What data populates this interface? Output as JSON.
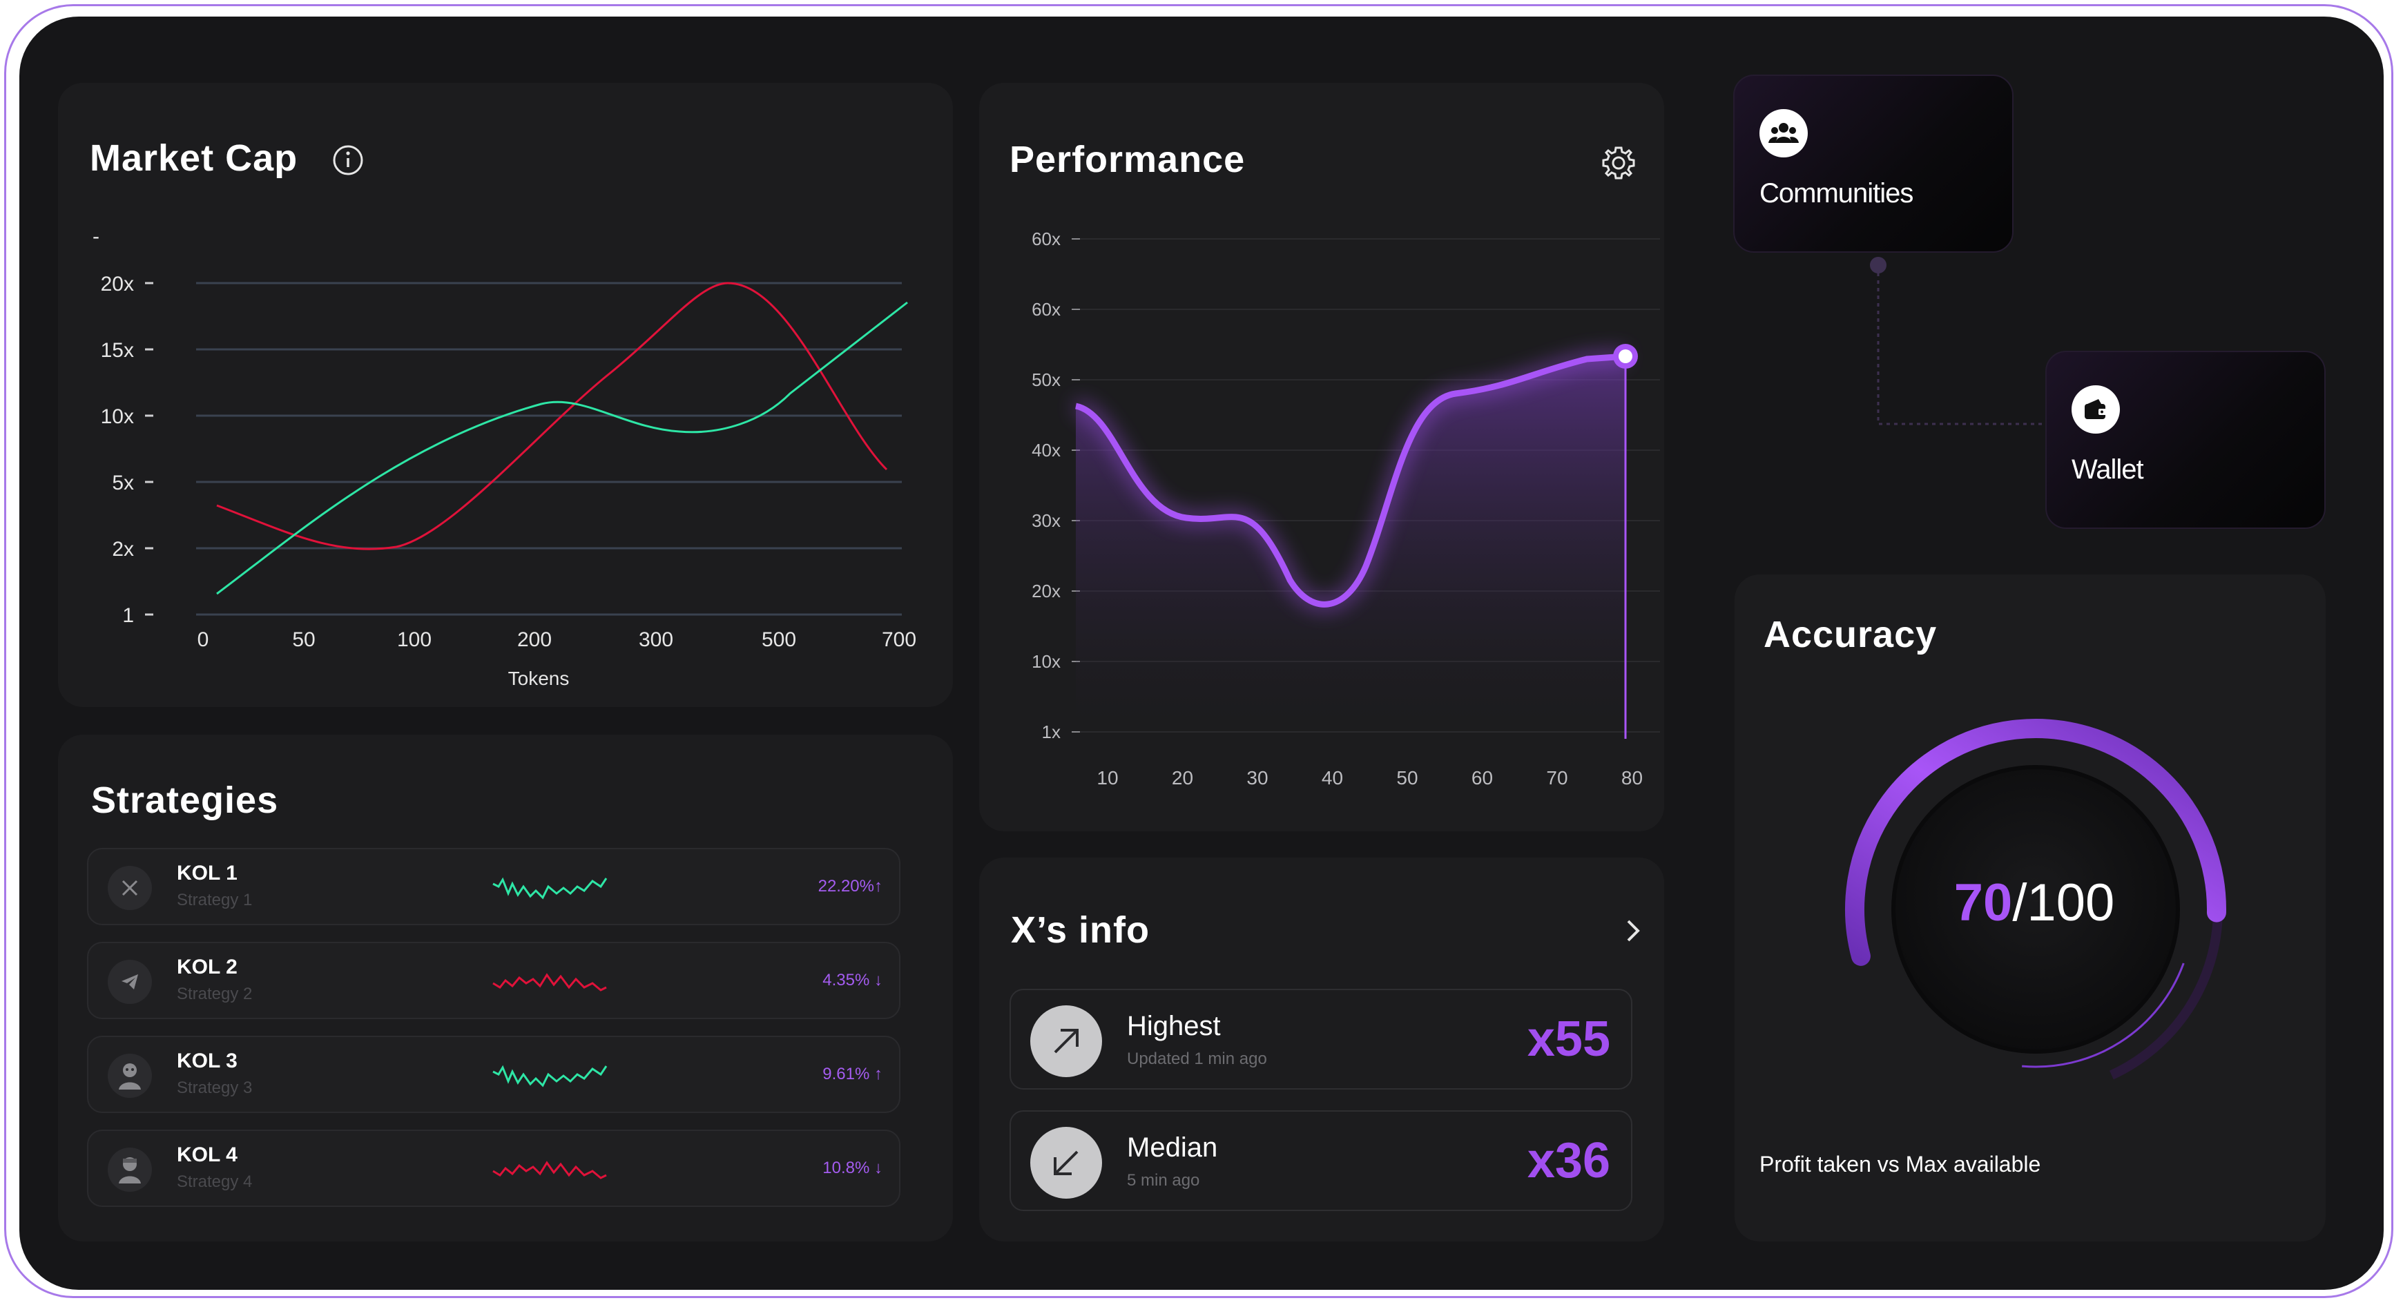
{
  "market_cap": {
    "title": "Market Cap",
    "dash": "-",
    "xlabel": "Tokens",
    "y_ticks": [
      "20x",
      "15x",
      "10x",
      "5x",
      "2x",
      "1"
    ],
    "x_ticks": [
      "0",
      "50",
      "100",
      "200",
      "300",
      "500",
      "700"
    ],
    "colors": {
      "green": "#2ee6a6",
      "red": "#e0123a"
    }
  },
  "performance": {
    "title": "Performance",
    "y_ticks": [
      "60x",
      "60x",
      "50x",
      "40x",
      "30x",
      "20x",
      "10x",
      "1x"
    ],
    "x_ticks": [
      "10",
      "20",
      "30",
      "40",
      "50",
      "60",
      "70",
      "80"
    ],
    "accent": "#a855f7"
  },
  "strategies": {
    "title": "Strategies",
    "rows": [
      {
        "name": "KOL 1",
        "sub": "Strategy 1",
        "pct": "22.20%↑",
        "trend": "up",
        "icon": "x-logo-icon"
      },
      {
        "name": "KOL 2",
        "sub": "Strategy 2",
        "pct": "4.35% ↓",
        "trend": "down",
        "icon": "telegram-icon"
      },
      {
        "name": "KOL 3",
        "sub": "Strategy 3",
        "pct": "9.61% ↑",
        "trend": "up",
        "icon": "avatar-icon"
      },
      {
        "name": "KOL 4",
        "sub": "Strategy 4",
        "pct": "10.8% ↓",
        "trend": "down",
        "icon": "avatar-icon"
      }
    ]
  },
  "xinfo": {
    "title": "X’s info",
    "rows": [
      {
        "label": "Highest",
        "sub": "Updated 1 min ago",
        "value": "x55",
        "icon": "arrow-up-right-icon"
      },
      {
        "label": "Median",
        "sub": "5 min ago",
        "value": "x36",
        "icon": "arrow-down-left-icon"
      }
    ]
  },
  "nodes": {
    "communities": "Communities",
    "wallet": "Wallet"
  },
  "accuracy": {
    "title": "Accuracy",
    "score": "70",
    "max": "/100",
    "fraction": 0.7,
    "caption": "Profit taken vs Max available"
  }
}
